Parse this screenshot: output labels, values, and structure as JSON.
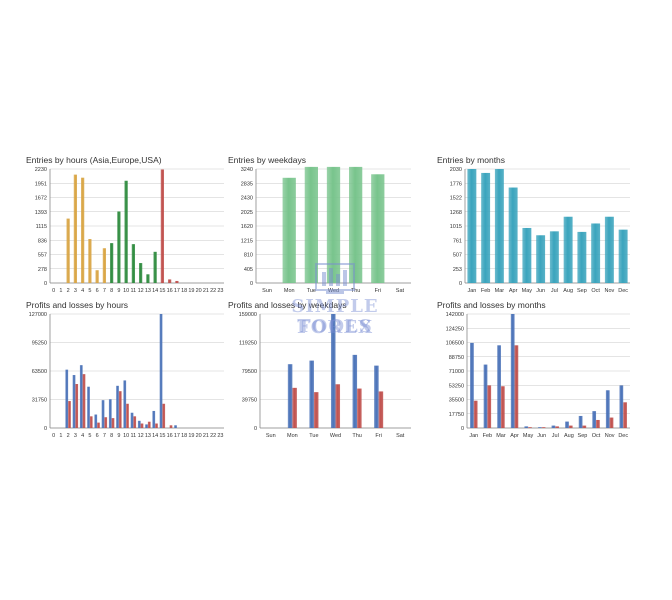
{
  "colors": {
    "orange": "#d9a544",
    "green": "#2e8b3e",
    "red": "#c0504d",
    "blue": "#4a72b8",
    "mint": "#78c48c",
    "teal": "#3aa4bd",
    "grid": "#c9c9c9",
    "axis": "#888888"
  },
  "watermark": {
    "line1": "SIMPLE FOREX",
    "line2": "TOOLS"
  },
  "chart_data": [
    {
      "type": "bar",
      "title": "Entries by hours (Asia,Europe,USA)",
      "categories": [
        "0",
        "1",
        "2",
        "3",
        "4",
        "5",
        "6",
        "7",
        "8",
        "9",
        "10",
        "11",
        "12",
        "13",
        "14",
        "15",
        "16",
        "17",
        "18",
        "19",
        "20",
        "21",
        "22",
        "23"
      ],
      "series": [
        {
          "values": [
            0,
            0,
            1260,
            2120,
            2060,
            860,
            250,
            680,
            0,
            0,
            0,
            0,
            0,
            0,
            0,
            0,
            0,
            0,
            0,
            0,
            0,
            0,
            0,
            0
          ],
          "color": "#d9a544"
        },
        {
          "values": [
            0,
            0,
            0,
            0,
            0,
            0,
            0,
            0,
            780,
            1400,
            2000,
            760,
            390,
            170,
            610,
            0,
            0,
            0,
            0,
            0,
            0,
            0,
            0,
            0
          ],
          "color": "#2e8b3e"
        },
        {
          "values": [
            0,
            0,
            0,
            0,
            0,
            0,
            0,
            0,
            0,
            0,
            0,
            0,
            0,
            0,
            0,
            2220,
            70,
            40,
            0,
            0,
            0,
            0,
            0,
            0
          ],
          "color": "#c0504d"
        }
      ],
      "ytick_labels": [
        "0",
        "278",
        "557",
        "836",
        "1115",
        "1393",
        "1672",
        "1951",
        "2230"
      ],
      "ylim": [
        0,
        2230
      ],
      "grid": true
    },
    {
      "type": "bar",
      "title": "Entries by weekdays",
      "categories": [
        "Sun",
        "Mon",
        "Tue",
        "Wed",
        "Thu",
        "Fri",
        "Sat"
      ],
      "series": [
        {
          "values": [
            0,
            2990,
            3300,
            3300,
            3300,
            3090,
            0
          ],
          "color": "#78c48c"
        }
      ],
      "ytick_labels": [
        "0",
        "405",
        "810",
        "1215",
        "1620",
        "2025",
        "2430",
        "2835",
        "3240"
      ],
      "ylim": [
        0,
        3240
      ],
      "grid": true
    },
    {
      "type": "bar",
      "title": "Entries by months",
      "categories": [
        "Jan",
        "Feb",
        "Mar",
        "Apr",
        "May",
        "Jun",
        "Jul",
        "Aug",
        "Sep",
        "Oct",
        "Nov",
        "Dec"
      ],
      "series": [
        {
          "values": [
            2030,
            1960,
            2030,
            1700,
            980,
            850,
            920,
            1180,
            910,
            1060,
            1180,
            950
          ],
          "color": "#3aa4bd"
        }
      ],
      "ytick_labels": [
        "0",
        "253",
        "507",
        "761",
        "1015",
        "1268",
        "1522",
        "1776",
        "2030"
      ],
      "ylim": [
        0,
        2030
      ],
      "grid": true
    },
    {
      "type": "bar",
      "title": "Profits and losses by hours",
      "categories": [
        "0",
        "1",
        "2",
        "3",
        "4",
        "5",
        "6",
        "7",
        "8",
        "9",
        "10",
        "11",
        "12",
        "13",
        "14",
        "15",
        "16",
        "17",
        "18",
        "19",
        "20",
        "21",
        "22",
        "23"
      ],
      "series": [
        {
          "values": [
            0,
            0,
            65000,
            59000,
            70000,
            46000,
            15000,
            31000,
            32000,
            47000,
            53000,
            17000,
            8000,
            4000,
            19000,
            127000,
            0,
            3000,
            0,
            0,
            0,
            0,
            0,
            0
          ],
          "color": "#4a72b8"
        },
        {
          "values": [
            0,
            0,
            30000,
            49000,
            60000,
            13000,
            6000,
            12000,
            11000,
            41000,
            27000,
            13000,
            5000,
            7000,
            5000,
            27000,
            3000,
            0,
            0,
            0,
            0,
            0,
            0,
            0
          ],
          "color": "#c0504d"
        }
      ],
      "ytick_labels": [
        "0",
        "31750",
        "63500",
        "95250",
        "127000"
      ],
      "ylim": [
        0,
        127000
      ],
      "grid": true
    },
    {
      "type": "bar",
      "title": "Profits and losses by weekdays",
      "categories": [
        "Sun",
        "Mon",
        "Tue",
        "Wed",
        "Thu",
        "Fri",
        "Sat"
      ],
      "series": [
        {
          "values": [
            0,
            89000,
            94000,
            159000,
            102000,
            87000,
            0
          ],
          "color": "#4a72b8"
        },
        {
          "values": [
            0,
            56000,
            50000,
            61000,
            55000,
            51000,
            0
          ],
          "color": "#c0504d"
        }
      ],
      "ytick_labels": [
        "0",
        "39750",
        "79500",
        "119250",
        "159000"
      ],
      "ylim": [
        0,
        159000
      ],
      "grid": true
    },
    {
      "type": "bar",
      "title": "Profits and losses by months",
      "categories": [
        "Jan",
        "Feb",
        "Mar",
        "Apr",
        "May",
        "Jun",
        "Jul",
        "Aug",
        "Sep",
        "Oct",
        "Nov",
        "Dec"
      ],
      "series": [
        {
          "values": [
            106000,
            79000,
            103000,
            142000,
            2000,
            1000,
            3000,
            8000,
            15000,
            21000,
            47000,
            53000
          ],
          "color": "#4a72b8"
        },
        {
          "values": [
            34000,
            53000,
            52000,
            103000,
            1000,
            1000,
            2000,
            3000,
            3000,
            10000,
            13000,
            32000
          ],
          "color": "#c0504d"
        }
      ],
      "ytick_labels": [
        "0",
        "17750",
        "35500",
        "53250",
        "71000",
        "88750",
        "106500",
        "124250",
        "142000"
      ],
      "ylim": [
        0,
        142000
      ],
      "grid": true
    }
  ]
}
